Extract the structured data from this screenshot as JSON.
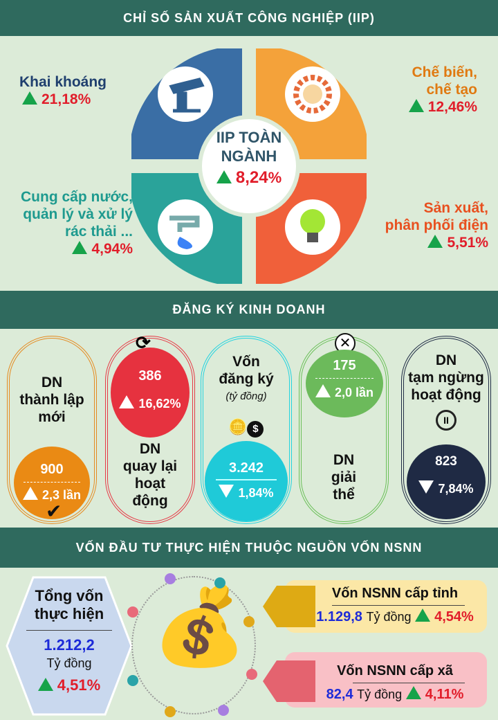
{
  "iip": {
    "title": "CHỈ SỐ SẢN XUẤT CÔNG NGHIỆP (IIP)",
    "center_line1": "IIP TOÀN",
    "center_line2": "NGÀNH",
    "center_value": "8,24",
    "pct": "%",
    "mining": {
      "label": "Khai khoáng",
      "value": "21,18"
    },
    "manufacturing": {
      "label1": "Chế biến,",
      "label2": "chế tạo",
      "value": "12,46"
    },
    "water": {
      "label1": "Cung cấp nước,",
      "label2": "quản lý và xử lý",
      "label3": "rác thải ...",
      "value": "4,94"
    },
    "electricity": {
      "label1": "Sản xuất,",
      "label2": "phân phối điện",
      "value": "5,51"
    },
    "colors": {
      "mining": "#3a6ea5",
      "manufacturing": "#f4a23a",
      "water": "#2aa39a",
      "electricity": "#f0603a"
    }
  },
  "business": {
    "title": "ĐĂNG KÝ KINH DOANH",
    "new": {
      "l1": "DN",
      "l2": "thành lập",
      "l3": "mới",
      "value": "900",
      "change": "2,3 lần"
    },
    "returned": {
      "value": "386",
      "change": "16,62%",
      "l1": "DN",
      "l2": "quay lại",
      "l3": "hoạt",
      "l4": "động"
    },
    "capital": {
      "l1": "Vốn",
      "l2": "đăng ký",
      "unit": "(tỷ đồng)",
      "value": "3.242",
      "change": "1,84%"
    },
    "dissolved": {
      "value": "175",
      "change": "2,0 lần",
      "l1": "DN",
      "l2": "giải",
      "l3": "thể"
    },
    "suspended": {
      "l1": "DN",
      "l2": "tạm ngừng",
      "l3": "hoạt động",
      "value": "823",
      "change": "7,84%"
    }
  },
  "investment": {
    "title": "VỐN ĐẦU TƯ THỰC HIỆN THUỘC NGUỒN VỐN NSNN",
    "total": {
      "l1": "Tổng vốn",
      "l2": "thực hiện",
      "value": "1.212,2",
      "unit": "Tỷ đồng",
      "change": "4,51%"
    },
    "province": {
      "label": "Vốn NSNN cấp tỉnh",
      "value": "1.129,8",
      "unit": "Tỷ đồng",
      "change": "4,54%"
    },
    "commune": {
      "label": "Vốn NSNN cấp xã",
      "value": "82,4",
      "unit": "Tỷ đồng",
      "change": "4,11%"
    }
  }
}
